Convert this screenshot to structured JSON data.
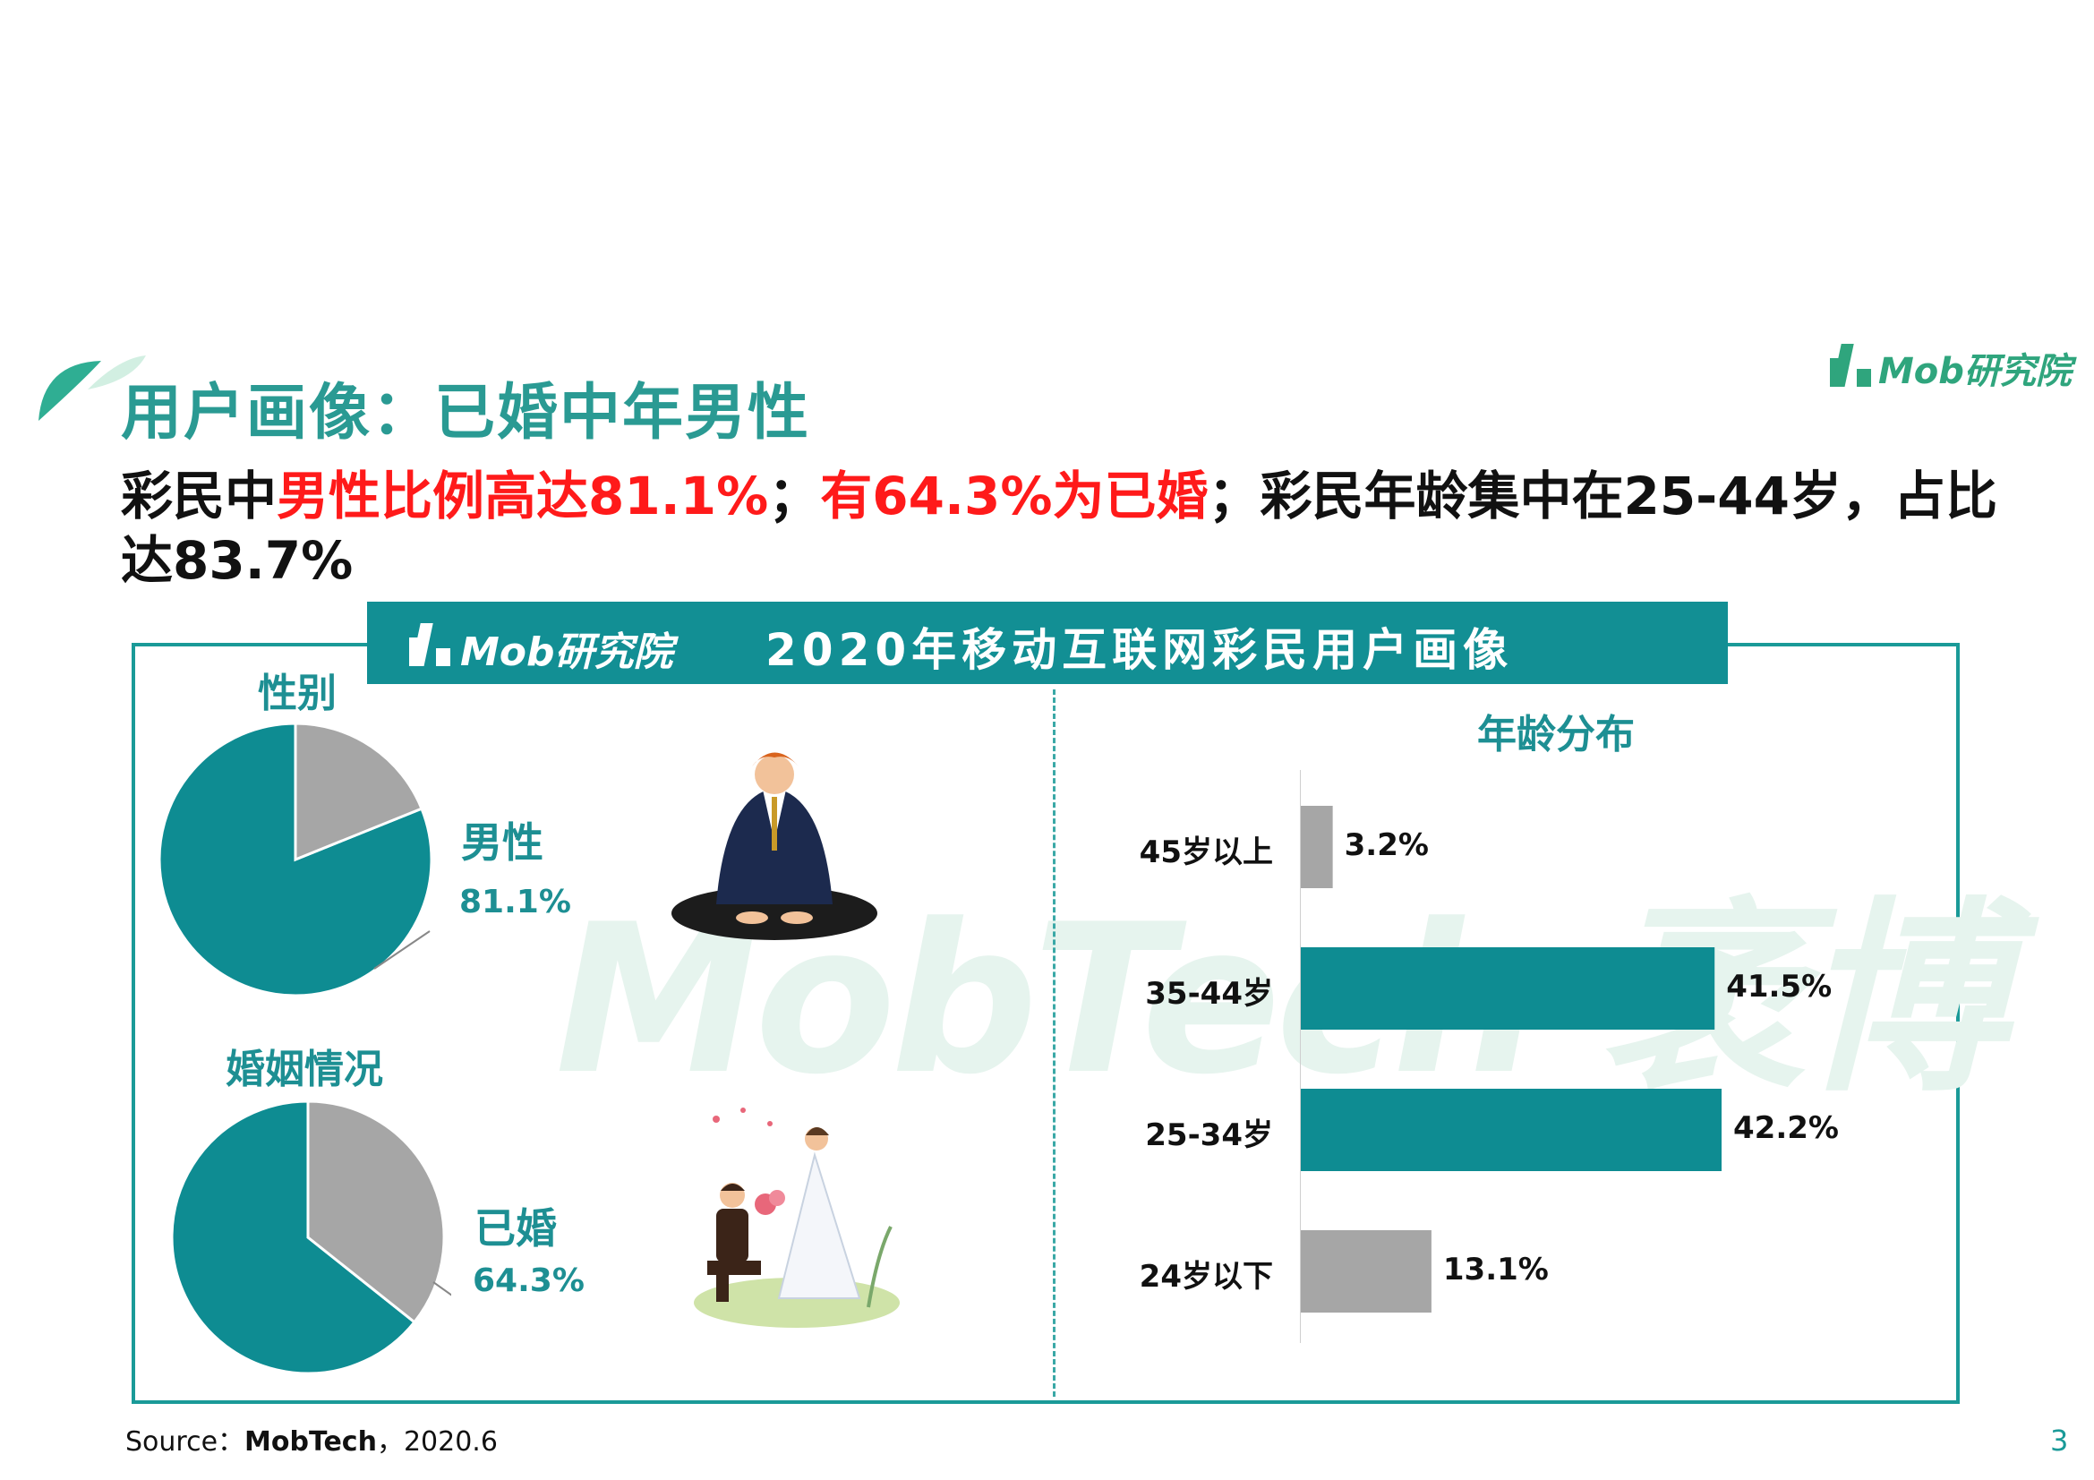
{
  "header": {
    "title": "用户画像：已婚中年男性",
    "logo_text": "Mob研究院"
  },
  "subtitle": {
    "part1": "彩民中",
    "part2_red": "男性比例高达81.1%",
    "part3": "；",
    "part4_red": "有64.3%为已婚",
    "part5": "；彩民年龄集中在25-44岁，占比达83.7%"
  },
  "panel": {
    "banner_logo": "Mob研究院",
    "banner_title": "2020年移动互联网彩民用户画像",
    "watermark": "MobTech 袤博"
  },
  "colors": {
    "teal": "#0e8c92",
    "gray": "#a6a6a6",
    "title_teal": "#2a9a93",
    "highlight_red": "#ff1a1a"
  },
  "chart_data": [
    {
      "type": "pie",
      "title": "性别",
      "slices": [
        {
          "label": "男性",
          "value": 81.1,
          "color": "#0e8c92"
        },
        {
          "label": "",
          "value": 18.9,
          "color": "#a6a6a6"
        }
      ],
      "highlight": {
        "label": "男性",
        "value_text": "81.1%"
      }
    },
    {
      "type": "pie",
      "title": "婚姻情况",
      "slices": [
        {
          "label": "已婚",
          "value": 64.3,
          "color": "#0e8c92"
        },
        {
          "label": "",
          "value": 35.7,
          "color": "#a6a6a6"
        }
      ],
      "highlight": {
        "label": "已婚",
        "value_text": "64.3%"
      }
    },
    {
      "type": "bar",
      "orientation": "horizontal",
      "title": "年龄分布",
      "categories": [
        "45岁以上",
        "35-44岁",
        "25-34岁",
        "24岁以下"
      ],
      "values": [
        3.2,
        41.5,
        42.2,
        13.1
      ],
      "value_labels": [
        "3.2%",
        "41.5%",
        "42.2%",
        "13.1%"
      ],
      "bar_colors": [
        "#a6a6a6",
        "#0e8c92",
        "#0e8c92",
        "#a6a6a6"
      ],
      "xlim": [
        0,
        45
      ]
    }
  ],
  "footer": {
    "source_prefix": "Source：",
    "source_name": "MobTech",
    "source_suffix": "，2020.6",
    "page_number": "3"
  }
}
